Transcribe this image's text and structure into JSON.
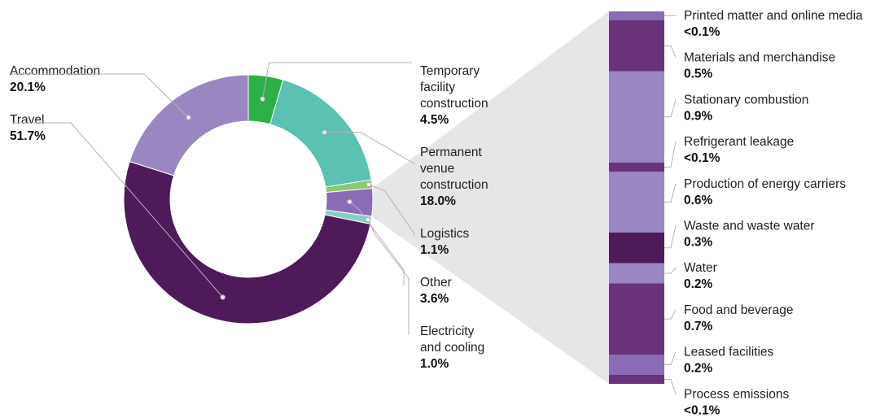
{
  "chart_data": [
    {
      "type": "pie",
      "style": "donut",
      "slices": [
        {
          "key": "temp",
          "name_lines": [
            "Temporary",
            "facility",
            "construction"
          ],
          "value_label": "4.5%",
          "value": 4.5,
          "color": "#2eaf4a"
        },
        {
          "key": "perm",
          "name_lines": [
            "Permanent",
            "venue",
            "construction"
          ],
          "value_label": "18.0%",
          "value": 18.0,
          "color": "#5bc2b3"
        },
        {
          "key": "logistics",
          "name_lines": [
            "Logistics"
          ],
          "value_label": "1.1%",
          "value": 1.1,
          "color": "#8cc870"
        },
        {
          "key": "other",
          "name_lines": [
            "Other"
          ],
          "value_label": "3.6%",
          "value": 3.6,
          "color": "#8a6bb5"
        },
        {
          "key": "elec",
          "name_lines": [
            "Electricity",
            "and cooling"
          ],
          "value_label": "1.0%",
          "value": 1.0,
          "color": "#86cfc8"
        },
        {
          "key": "travel",
          "name_lines": [
            "Travel"
          ],
          "value_label": "51.7%",
          "value": 51.7,
          "color": "#4e1a5a"
        },
        {
          "key": "accom",
          "name_lines": [
            "Accommodation"
          ],
          "value_label": "20.1%",
          "value": 20.1,
          "color": "#9a86c0"
        }
      ]
    },
    {
      "type": "bar",
      "style": "stacked-breakdown-of-other",
      "segments": [
        {
          "name": "Printed matter and online media",
          "value_label": "<0.1%",
          "value": 0.05,
          "color": "#8a6bb5"
        },
        {
          "name": "Materials and merchandise",
          "value_label": "0.5%",
          "value": 0.5,
          "color": "#6a3278"
        },
        {
          "name": "Stationary combustion",
          "value_label": "0.9%",
          "value": 0.9,
          "color": "#9a86c0"
        },
        {
          "name": "Refrigerant leakage",
          "value_label": "<0.1%",
          "value": 0.05,
          "color": "#6a3278"
        },
        {
          "name": "Production of energy carriers",
          "value_label": "0.6%",
          "value": 0.6,
          "color": "#9a86c0"
        },
        {
          "name": "Waste and waste water",
          "value_label": "0.3%",
          "value": 0.3,
          "color": "#4e1a5a"
        },
        {
          "name": "Water",
          "value_label": "0.2%",
          "value": 0.2,
          "color": "#9a86c0"
        },
        {
          "name": "Food and beverage",
          "value_label": "0.7%",
          "value": 0.7,
          "color": "#6a3278"
        },
        {
          "name": "Leased facilities",
          "value_label": "0.2%",
          "value": 0.2,
          "color": "#8a6bb5"
        },
        {
          "name": "Process emissions",
          "value_label": "<0.1%",
          "value": 0.05,
          "color": "#6a3278"
        }
      ]
    }
  ],
  "colors": {
    "connector": "#b3b3b3",
    "zoom_wedge": "#e7e6e6",
    "text": "#1f1f1f"
  }
}
